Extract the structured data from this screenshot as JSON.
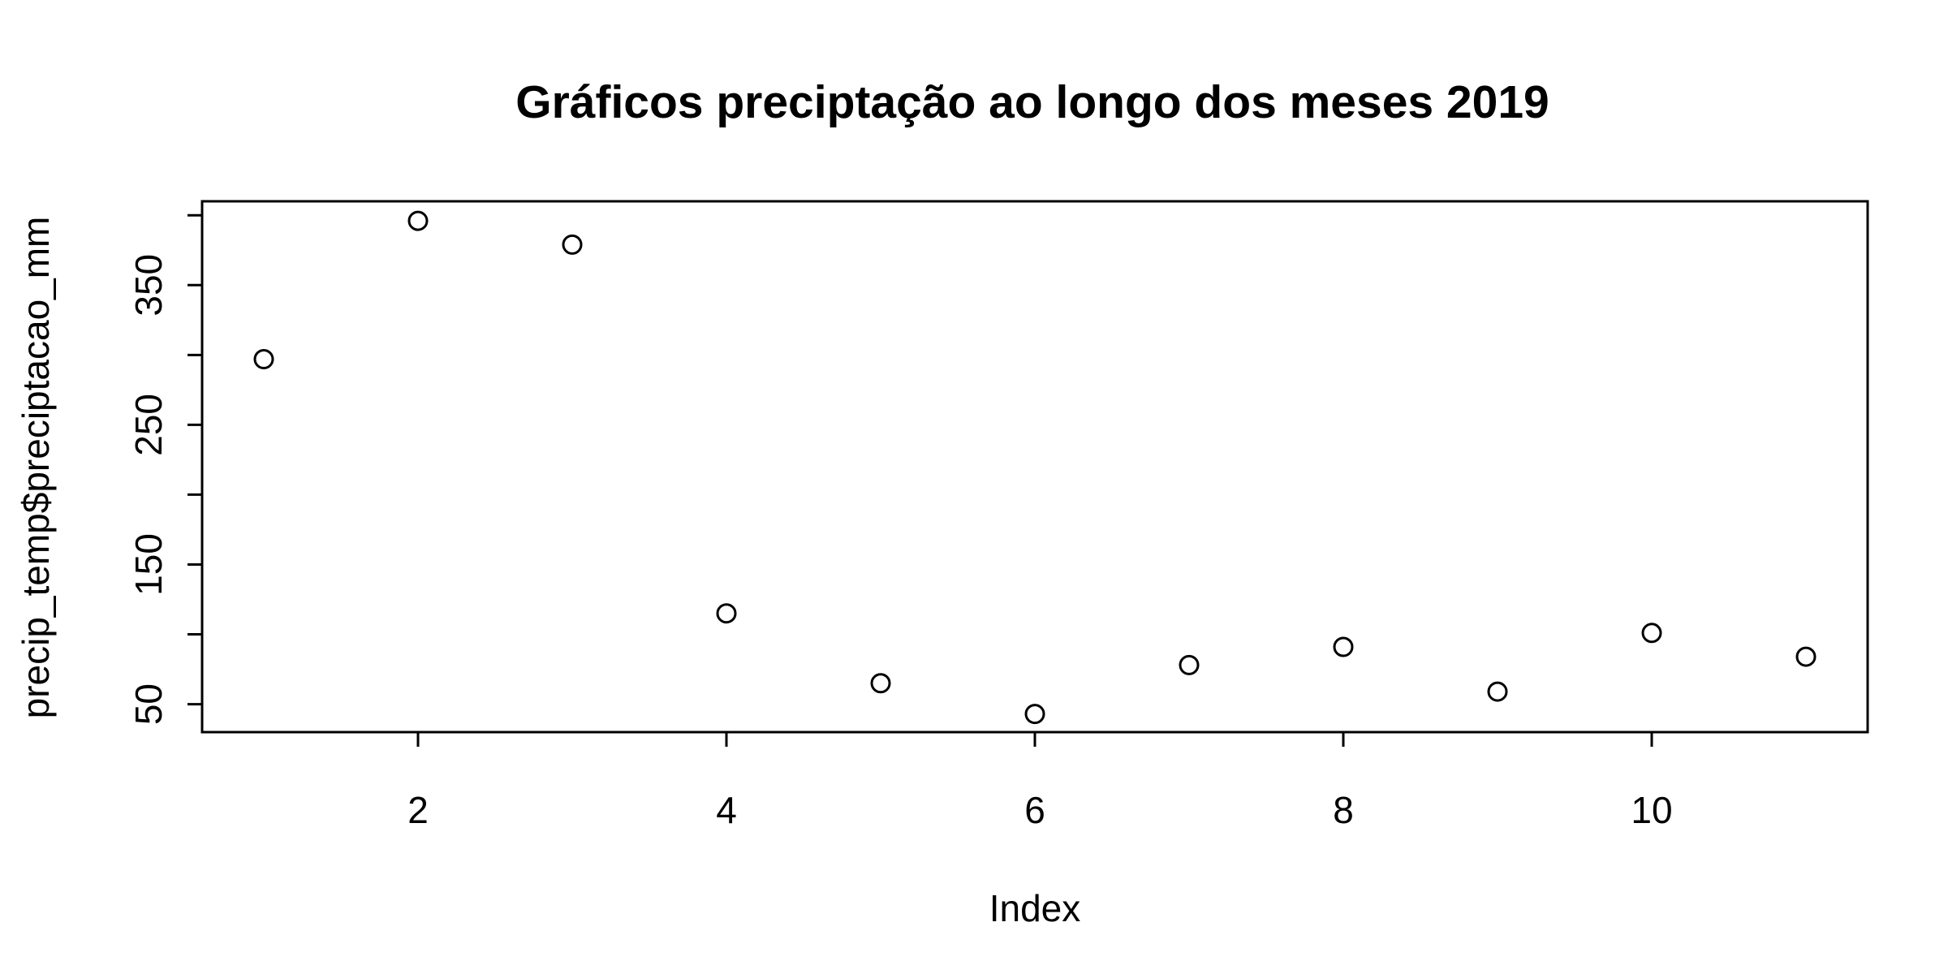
{
  "chart_data": {
    "type": "scatter",
    "title": "Gráficos preciptação ao longo dos meses 2019",
    "xlabel": "Index",
    "ylabel": "precip_temp$preciptacao_mm",
    "x": [
      1,
      2,
      3,
      4,
      5,
      6,
      7,
      8,
      9,
      10,
      11
    ],
    "y": [
      297,
      396,
      379,
      115,
      65,
      43,
      78,
      91,
      59,
      101,
      84
    ],
    "xlim": [
      0.6,
      11.4
    ],
    "ylim": [
      30,
      410
    ],
    "xticks": [
      2,
      4,
      6,
      8,
      10
    ],
    "xtick_labels": [
      "2",
      "4",
      "6",
      "8",
      "10"
    ],
    "yticks": [
      50,
      150,
      250,
      350
    ],
    "ytick_labels": [
      "50",
      "150",
      "250",
      "350"
    ],
    "minor_yticks": [
      50,
      100,
      150,
      200,
      250,
      300,
      350,
      400
    ],
    "marker": "open-circle",
    "grid": false,
    "colors": {
      "points": "#000000",
      "axes": "#000000",
      "background": "#ffffff"
    }
  }
}
